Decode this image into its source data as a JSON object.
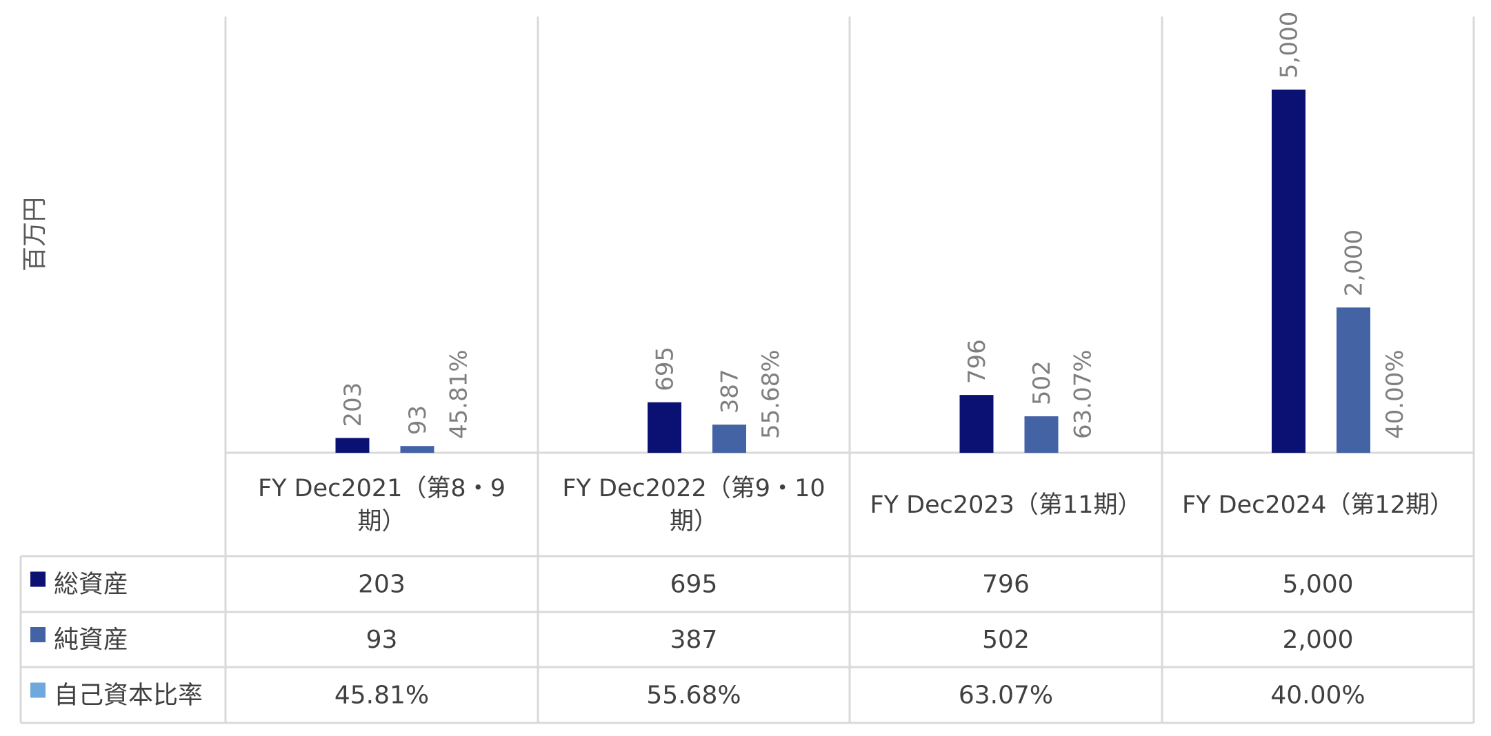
{
  "chart_data": {
    "type": "bar",
    "ylabel": "百万円",
    "categories": [
      [
        "FY Dec2021（第8・9",
        "期）"
      ],
      [
        "FY Dec2022（第9・10",
        "期）"
      ],
      [
        "FY Dec2023（第11期）"
      ],
      [
        "FY Dec2024（第12期）"
      ]
    ],
    "series": [
      {
        "name": "総資産",
        "values": [
          203,
          695,
          796,
          5000
        ],
        "labels": [
          "203",
          "695",
          "796",
          "5,000"
        ],
        "color": "#0a1172"
      },
      {
        "name": "純資産",
        "values": [
          93,
          387,
          502,
          2000
        ],
        "labels": [
          "93",
          "387",
          "502",
          "2,000"
        ],
        "color": "#4363a5"
      },
      {
        "name": "自己資本比率",
        "values": [
          45.81,
          55.68,
          63.07,
          40.0
        ],
        "labels": [
          "45.81%",
          "55.68%",
          "63.07%",
          "40.00%"
        ],
        "color": "#6fa8dc",
        "unit": "%"
      }
    ],
    "ylim": [
      0,
      5000
    ],
    "grid": false,
    "legend": "data-table"
  }
}
